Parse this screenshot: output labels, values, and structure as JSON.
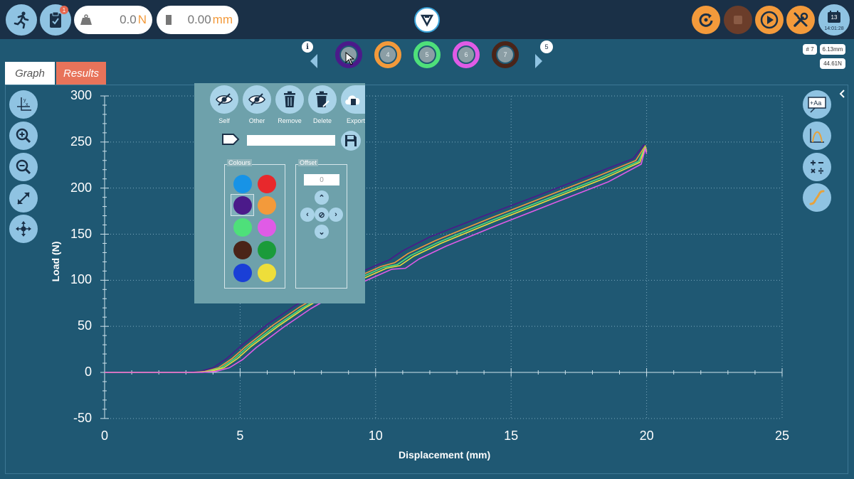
{
  "topbar": {
    "notification_count": "1",
    "load_value": "0.0",
    "load_unit": "N",
    "position_value": "0.00",
    "position_unit": "mm",
    "clock_day": "13",
    "clock_time": "14:01:28"
  },
  "tests": {
    "items": [
      {
        "label": "",
        "ring": "#4b1a8a"
      },
      {
        "label": "4",
        "ring": "#f39a3b"
      },
      {
        "label": "5",
        "ring": "#4ee07a"
      },
      {
        "label": "6",
        "ring": "#e05be6"
      },
      {
        "label": "7",
        "ring": "#4a2418"
      }
    ],
    "more_count": "5"
  },
  "tabs": {
    "graph": "Graph",
    "results": "Results"
  },
  "cursor_info": {
    "test": "# 7",
    "displacement": "6.13mm",
    "load": "44.61N"
  },
  "panel": {
    "buttons": [
      "Self",
      "Other",
      "Remove",
      "Delete",
      "Export"
    ],
    "name_value": "",
    "colours_title": "Colours",
    "offset_title": "Offset",
    "offset_value": "0",
    "colours": [
      "#1793e6",
      "#e8282c",
      "#4b1a8a",
      "#f39a3b",
      "#4ee07a",
      "#e05be6",
      "#4a2418",
      "#1a9b3a",
      "#1a3fd6",
      "#eede3a"
    ],
    "selected_colour": "#4b1a8a"
  },
  "chart_data": {
    "type": "line",
    "xlabel": "Displacement (mm)",
    "ylabel": "Load (N)",
    "xlim": [
      0,
      25
    ],
    "ylim": [
      -50,
      300
    ],
    "xticks": [
      0,
      5,
      10,
      15,
      20,
      25
    ],
    "yticks": [
      300,
      250,
      200,
      150,
      100,
      50,
      0,
      -50
    ],
    "grid": true,
    "series": [
      {
        "color": "#4b1a8a",
        "x": [
          0,
          3.0,
          3.5,
          4.0,
          4.5,
          5.0,
          6.0,
          7.0,
          8.0,
          9.0,
          10.0,
          10.5,
          11.0,
          12.0,
          14.0,
          16.0,
          18.0,
          19.5,
          19.9,
          20.0
        ],
        "y": [
          0,
          0,
          1,
          5,
          15,
          28,
          52,
          72,
          89,
          103,
          116,
          122,
          132,
          147,
          170,
          192,
          215,
          232,
          247,
          243
        ]
      },
      {
        "color": "#f39a3b",
        "x": [
          0,
          3.2,
          3.7,
          4.2,
          4.7,
          5.2,
          6.2,
          7.2,
          8.2,
          9.2,
          10.2,
          10.7,
          11.2,
          12.2,
          14.2,
          16.2,
          18.2,
          19.6,
          19.95,
          20.0
        ],
        "y": [
          0,
          0,
          1,
          5,
          15,
          28,
          51,
          71,
          88,
          102,
          115,
          119,
          129,
          143,
          167,
          190,
          213,
          230,
          246,
          241
        ]
      },
      {
        "color": "#4ee07a",
        "x": [
          0,
          3.3,
          3.8,
          4.3,
          4.8,
          5.3,
          6.3,
          7.3,
          8.3,
          9.3,
          10.3,
          10.8,
          11.3,
          12.3,
          14.3,
          16.3,
          18.3,
          19.7,
          19.95,
          20.0
        ],
        "y": [
          0,
          0,
          1,
          5,
          15,
          28,
          50,
          70,
          87,
          101,
          114,
          117,
          127,
          141,
          165,
          188,
          211,
          229,
          245,
          240
        ]
      },
      {
        "color": "#eede3a",
        "x": [
          0,
          3.4,
          3.9,
          4.4,
          4.9,
          5.4,
          6.4,
          7.4,
          8.4,
          9.4,
          10.4,
          10.9,
          11.4,
          12.4,
          14.4,
          16.4,
          18.4,
          19.75,
          19.95,
          20.0
        ],
        "y": [
          0,
          0,
          1,
          5,
          15,
          28,
          50,
          70,
          87,
          100,
          113,
          116,
          126,
          140,
          164,
          187,
          210,
          228,
          244,
          239
        ]
      },
      {
        "color": "#e05be6",
        "x": [
          0,
          3.6,
          4.1,
          4.6,
          5.1,
          5.6,
          6.6,
          7.6,
          8.6,
          9.6,
          10.6,
          11.1,
          11.6,
          12.6,
          14.6,
          16.6,
          18.6,
          19.8,
          19.95,
          20.0
        ],
        "y": [
          0,
          0,
          1,
          5,
          14,
          27,
          49,
          69,
          86,
          99,
          112,
          113,
          123,
          137,
          161,
          184,
          207,
          226,
          243,
          237
        ]
      }
    ]
  }
}
